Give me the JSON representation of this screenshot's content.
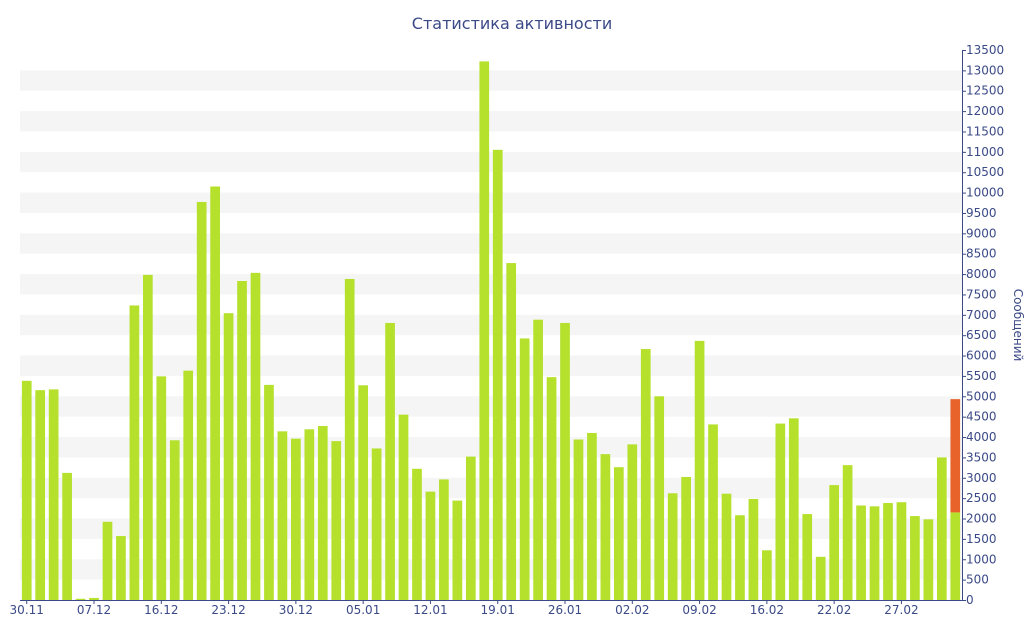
{
  "chart_data": {
    "type": "bar",
    "title": "Статистика активности",
    "xlabel": "",
    "ylabel": "Сообщений",
    "ylim": [
      0,
      13500
    ],
    "y_tick_step": 500,
    "y_axis_side": "right",
    "x_tick_labels": [
      "30.11",
      "07.12",
      "16.12",
      "23.12",
      "30.12",
      "05.01",
      "12.01",
      "19.01",
      "26.01",
      "02.02",
      "09.02",
      "16.02",
      "22.02",
      "27.02"
    ],
    "x_tick_label_bar_index": [
      0,
      5,
      10,
      15,
      20,
      25,
      30,
      35,
      40,
      45,
      50,
      55,
      60,
      65
    ],
    "colors": {
      "bar": "#b5e02b",
      "highlight": "#e8632a",
      "axis": "#3b4a87",
      "band": "#f5f5f5"
    },
    "series": [
      {
        "values": [
          5380,
          5150,
          5170,
          3120,
          30,
          50,
          1920,
          1570,
          7230,
          7980,
          5490,
          3920,
          5630,
          9770,
          10150,
          7040,
          7830,
          8030,
          5280,
          4140,
          3960,
          4190,
          4270,
          3900,
          7880,
          5270,
          3720,
          6800,
          4550,
          3220,
          2660,
          2960,
          2440,
          3520,
          13220,
          11050,
          8270,
          6420,
          6880,
          5470,
          6800,
          3940,
          4100,
          3580,
          3260,
          3820,
          6160,
          5000,
          2620,
          3020,
          6360,
          4310,
          2610,
          2080,
          2480,
          1220,
          4330,
          4460,
          2110,
          1060,
          2820,
          3310,
          2320,
          2300,
          2380,
          2400,
          2060,
          1980,
          3500
        ],
        "highlight_last": {
          "value": 4930,
          "base": 2150
        }
      }
    ]
  }
}
